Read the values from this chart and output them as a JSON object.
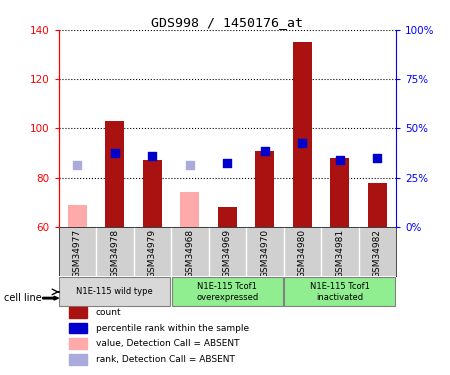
{
  "title": "GDS998 / 1450176_at",
  "samples": [
    "GSM34977",
    "GSM34978",
    "GSM34979",
    "GSM34968",
    "GSM34969",
    "GSM34970",
    "GSM34980",
    "GSM34981",
    "GSM34982"
  ],
  "count_values": [
    null,
    103,
    87,
    null,
    68,
    91,
    135,
    88,
    78
  ],
  "count_absent": [
    69,
    null,
    null,
    74,
    null,
    null,
    null,
    null,
    null
  ],
  "rank_values": [
    null,
    90,
    89,
    null,
    86,
    91,
    94,
    87,
    88
  ],
  "rank_absent": [
    85,
    null,
    null,
    85,
    null,
    null,
    null,
    null,
    null
  ],
  "ylim_left": [
    60,
    140
  ],
  "ylim_right": [
    0,
    100
  ],
  "yticks_left": [
    60,
    80,
    100,
    120,
    140
  ],
  "yticks_right": [
    0,
    25,
    50,
    75,
    100
  ],
  "ytick_labels_right": [
    "0%",
    "25%",
    "50%",
    "75%",
    "100%"
  ],
  "groups": [
    {
      "label": "N1E-115 wild type",
      "indices": [
        0,
        1,
        2
      ],
      "color": "#d8d8d8"
    },
    {
      "label": "N1E-115 Tcof1\noverexpressed",
      "indices": [
        3,
        4,
        5
      ],
      "color": "#90ee90"
    },
    {
      "label": "N1E-115 Tcof1\ninactivated",
      "indices": [
        6,
        7,
        8
      ],
      "color": "#90ee90"
    }
  ],
  "bar_color_present": "#aa1111",
  "bar_color_absent": "#ffaaaa",
  "dot_color_present": "#0000cc",
  "dot_color_absent": "#aaaadd",
  "bar_width": 0.5,
  "dot_size": 30,
  "cell_line_label": "cell line",
  "legend_items": [
    {
      "label": "count",
      "color": "#aa1111"
    },
    {
      "label": "percentile rank within the sample",
      "color": "#0000cc"
    },
    {
      "label": "value, Detection Call = ABSENT",
      "color": "#ffaaaa"
    },
    {
      "label": "rank, Detection Call = ABSENT",
      "color": "#aaaadd"
    }
  ],
  "xtick_bg_color": "#d0d0d0",
  "plot_bg_color": "#ffffff"
}
